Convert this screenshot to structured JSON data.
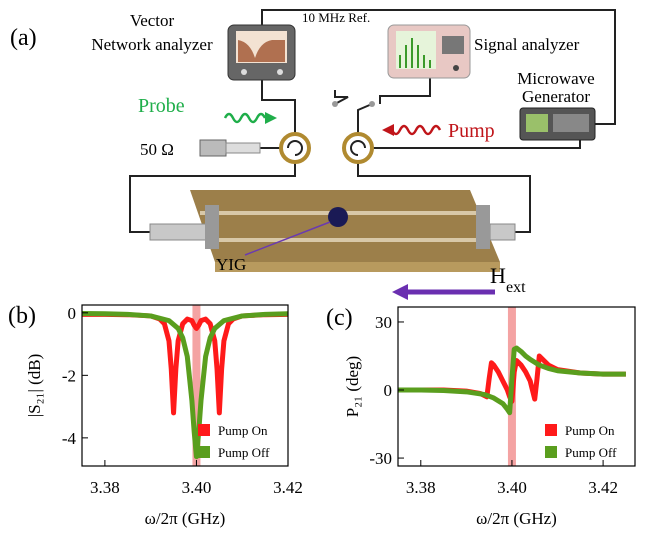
{
  "diagram": {
    "panel_label": "(a)",
    "vna_label_1": "Vector",
    "vna_label_2": "Network analyzer",
    "reference": "10 MHz Ref.",
    "signal_analyzer": "Signal analyzer",
    "generator_label_1": "Microwave",
    "generator_label_2": "Generator",
    "probe": "Probe",
    "pump": "Pump",
    "load": "50 Ω",
    "sample": "YIG",
    "field_symbol": "H",
    "field_subscript": "ext"
  },
  "chart_data": [
    {
      "type": "line",
      "panel_label": "(b)",
      "xlabel": "ω/2π  (GHz)",
      "ylabel": "|S₂₁| (dB)",
      "xlim": [
        3.375,
        3.42
      ],
      "xticks": [
        3.38,
        {
          "value": 3.4,
          "label": "3.40"
        },
        3.42
      ],
      "ylim": [
        -4.9,
        0.25
      ],
      "yticks": [
        0,
        -2,
        -4
      ],
      "highlight_x": 3.4,
      "highlight_color": "#f4a3a3",
      "legend": "lower right",
      "series": [
        {
          "name": "Pump On",
          "color": "#ff1a1a",
          "x": [
            3.375,
            3.38,
            3.385,
            3.39,
            3.392,
            3.393,
            3.394,
            3.3945,
            3.395,
            3.3955,
            3.396,
            3.397,
            3.398,
            3.399,
            3.3995,
            3.4,
            3.4005,
            3.401,
            3.402,
            3.403,
            3.404,
            3.4045,
            3.405,
            3.4055,
            3.406,
            3.407,
            3.408,
            3.41,
            3.415,
            3.42
          ],
          "values": [
            -0.05,
            -0.05,
            -0.06,
            -0.1,
            -0.2,
            -0.35,
            -0.9,
            -1.8,
            -3.2,
            -1.8,
            -0.9,
            -0.35,
            -0.2,
            -0.25,
            -0.4,
            -0.5,
            -0.4,
            -0.25,
            -0.2,
            -0.35,
            -0.9,
            -1.8,
            -3.2,
            -1.8,
            -0.9,
            -0.35,
            -0.2,
            -0.1,
            -0.06,
            -0.05
          ]
        },
        {
          "name": "Pump Off",
          "color": "#5a9e1e",
          "x": [
            3.375,
            3.38,
            3.385,
            3.39,
            3.394,
            3.396,
            3.397,
            3.398,
            3.399,
            3.3995,
            3.4,
            3.4005,
            3.401,
            3.402,
            3.403,
            3.404,
            3.406,
            3.41,
            3.415,
            3.42
          ],
          "values": [
            -0.02,
            -0.03,
            -0.05,
            -0.1,
            -0.25,
            -0.5,
            -0.8,
            -1.4,
            -2.8,
            -3.8,
            -4.6,
            -3.8,
            -2.8,
            -1.4,
            -0.8,
            -0.5,
            -0.25,
            -0.1,
            -0.05,
            -0.03
          ]
        }
      ]
    },
    {
      "type": "line",
      "panel_label": "(c)",
      "xlabel": "ω/2π  (GHz)",
      "ylabel": "P₂₁ (deg)",
      "xlim": [
        3.375,
        3.427
      ],
      "xticks": [
        3.38,
        {
          "value": 3.4,
          "label": "3.40"
        },
        3.42
      ],
      "ylim": [
        -33.5,
        36.6
      ],
      "yticks": [
        30,
        0,
        -30
      ],
      "highlight_x": 3.4,
      "highlight_color": "#f4a3a3",
      "legend": "lower right",
      "series": [
        {
          "name": "Pump On",
          "color": "#ff1a1a",
          "x": [
            3.375,
            3.38,
            3.385,
            3.39,
            3.393,
            3.394,
            3.3945,
            3.395,
            3.3955,
            3.396,
            3.397,
            3.398,
            3.399,
            3.3995,
            3.4,
            3.4005,
            3.401,
            3.402,
            3.403,
            3.404,
            3.4045,
            3.405,
            3.4055,
            3.406,
            3.407,
            3.408,
            3.41,
            3.415,
            3.42,
            3.425
          ],
          "values": [
            0,
            0,
            0,
            -0.5,
            -1.5,
            -2.5,
            -3,
            5,
            12,
            11,
            8,
            4,
            0,
            -3,
            -5,
            8,
            13,
            11,
            8,
            4,
            0,
            -4,
            5,
            15,
            13,
            11,
            9,
            7.5,
            7,
            7
          ]
        },
        {
          "name": "Pump Off",
          "color": "#5a9e1e",
          "x": [
            3.375,
            3.38,
            3.385,
            3.39,
            3.394,
            3.396,
            3.398,
            3.399,
            3.3995,
            3.4,
            3.4005,
            3.401,
            3.402,
            3.403,
            3.404,
            3.406,
            3.408,
            3.41,
            3.415,
            3.42,
            3.425
          ],
          "values": [
            0,
            0,
            -0.2,
            -0.8,
            -2,
            -3.5,
            -6,
            -8.5,
            -10,
            5,
            18,
            18.5,
            17,
            15,
            13.5,
            11,
            9.5,
            8.5,
            7.5,
            7,
            7
          ]
        }
      ]
    }
  ]
}
